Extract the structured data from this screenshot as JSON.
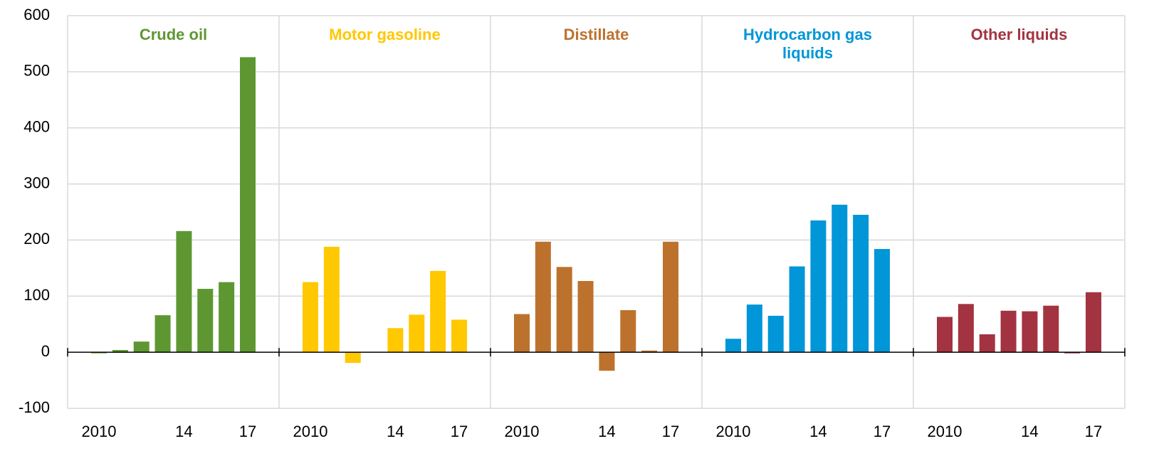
{
  "chart_data": {
    "type": "bar",
    "categories": [
      "2010",
      null,
      null,
      null,
      "14",
      null,
      null,
      "17"
    ],
    "series": [
      {
        "name": "Crude oil",
        "color": "#5e9732",
        "values": [
          -1,
          4,
          19,
          66,
          216,
          113,
          125,
          526
        ]
      },
      {
        "name": "Motor gasoline",
        "color": "#ffc800",
        "values": [
          125,
          188,
          -19,
          0,
          43,
          67,
          145,
          58
        ]
      },
      {
        "name": "Distillate",
        "color": "#bc722d",
        "values": [
          68,
          197,
          152,
          127,
          -33,
          75,
          3,
          197
        ]
      },
      {
        "name": "Hydrocarbon gas liquids",
        "color": "#0096d7",
        "values": [
          24,
          85,
          65,
          153,
          235,
          263,
          245,
          184
        ]
      },
      {
        "name": "Other liquids",
        "color": "#a33340",
        "values": [
          63,
          86,
          32,
          74,
          73,
          83,
          -2,
          107
        ]
      }
    ],
    "ylim": [
      -100,
      600
    ],
    "yticks": [
      -100,
      0,
      100,
      200,
      300,
      400,
      500,
      600
    ],
    "grid": true
  }
}
